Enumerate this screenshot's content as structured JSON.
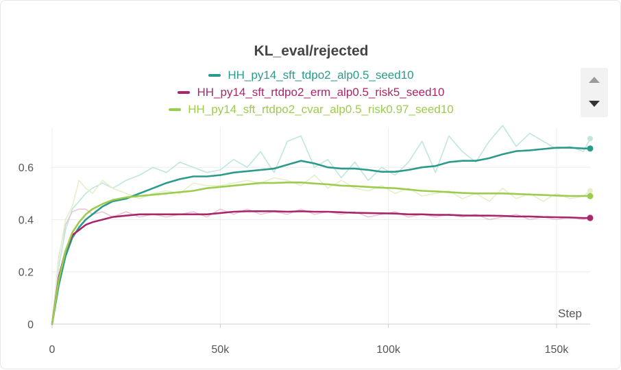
{
  "chart_data": {
    "type": "line",
    "title": "KL_eval/rejected",
    "xlabel": "Step",
    "ylabel": "",
    "xlim": [
      0,
      160000
    ],
    "ylim": [
      0,
      0.75
    ],
    "x_ticks": [
      0,
      50000,
      100000,
      150000
    ],
    "x_tick_labels": [
      "0",
      "50k",
      "100k",
      "150k"
    ],
    "y_ticks": [
      0,
      0.2,
      0.4,
      0.6
    ],
    "y_tick_labels": [
      "0",
      "0.2",
      "0.4",
      "0.6"
    ],
    "grid": "vertical and horizontal",
    "legend_position": "top-center",
    "series": [
      {
        "name": "HH_py14_sft_tdpo2_alp0.5_seed10",
        "color": "#2a9a8a",
        "raw_color": "#bfe6df",
        "x": [
          0,
          2000,
          4000,
          6000,
          8000,
          10000,
          12000,
          15000,
          18000,
          22000,
          26000,
          30000,
          34000,
          38000,
          42000,
          46000,
          50000,
          54000,
          58000,
          62000,
          66000,
          70000,
          74000,
          78000,
          82000,
          86000,
          90000,
          94000,
          98000,
          102000,
          106000,
          110000,
          114000,
          118000,
          122000,
          126000,
          130000,
          134000,
          138000,
          142000,
          146000,
          150000,
          154000,
          158000,
          160000
        ],
        "values": [
          0.0,
          0.15,
          0.26,
          0.33,
          0.37,
          0.4,
          0.42,
          0.45,
          0.47,
          0.48,
          0.5,
          0.52,
          0.54,
          0.555,
          0.565,
          0.565,
          0.57,
          0.58,
          0.585,
          0.59,
          0.595,
          0.61,
          0.625,
          0.615,
          0.6,
          0.595,
          0.595,
          0.59,
          0.583,
          0.583,
          0.59,
          0.6,
          0.605,
          0.62,
          0.625,
          0.625,
          0.635,
          0.65,
          0.662,
          0.665,
          0.67,
          0.675,
          0.675,
          0.672,
          0.672
        ],
        "raw_values": [
          0.0,
          0.22,
          0.36,
          0.44,
          0.47,
          0.5,
          0.52,
          0.54,
          0.52,
          0.55,
          0.57,
          0.6,
          0.58,
          0.62,
          0.6,
          0.58,
          0.59,
          0.63,
          0.6,
          0.66,
          0.58,
          0.7,
          0.72,
          0.6,
          0.63,
          0.56,
          0.62,
          0.55,
          0.6,
          0.57,
          0.62,
          0.7,
          0.58,
          0.72,
          0.66,
          0.62,
          0.7,
          0.76,
          0.68,
          0.73,
          0.7,
          0.67,
          0.68,
          0.66,
          0.71
        ]
      },
      {
        "name": "HH_py14_sft_rtdpo2_erm_alp0.5_risk5_seed10",
        "color": "#a8276a",
        "raw_color": "#ebc4d8",
        "x": [
          0,
          2000,
          4000,
          6000,
          8000,
          10000,
          12000,
          15000,
          18000,
          22000,
          26000,
          30000,
          34000,
          38000,
          42000,
          46000,
          50000,
          54000,
          58000,
          62000,
          66000,
          70000,
          74000,
          78000,
          82000,
          86000,
          90000,
          94000,
          98000,
          102000,
          106000,
          110000,
          114000,
          118000,
          122000,
          126000,
          130000,
          134000,
          138000,
          142000,
          146000,
          150000,
          154000,
          158000,
          160000
        ],
        "values": [
          0.0,
          0.18,
          0.28,
          0.34,
          0.36,
          0.38,
          0.39,
          0.4,
          0.41,
          0.415,
          0.42,
          0.42,
          0.42,
          0.42,
          0.42,
          0.42,
          0.425,
          0.43,
          0.432,
          0.432,
          0.432,
          0.43,
          0.432,
          0.43,
          0.43,
          0.428,
          0.426,
          0.425,
          0.424,
          0.423,
          0.42,
          0.42,
          0.418,
          0.418,
          0.416,
          0.415,
          0.415,
          0.414,
          0.412,
          0.412,
          0.41,
          0.409,
          0.408,
          0.406,
          0.406
        ],
        "raw_values": [
          0.0,
          0.26,
          0.38,
          0.43,
          0.44,
          0.44,
          0.42,
          0.43,
          0.41,
          0.43,
          0.41,
          0.42,
          0.41,
          0.42,
          0.43,
          0.41,
          0.44,
          0.42,
          0.44,
          0.42,
          0.43,
          0.42,
          0.44,
          0.42,
          0.43,
          0.42,
          0.43,
          0.41,
          0.42,
          0.43,
          0.41,
          0.42,
          0.41,
          0.42,
          0.41,
          0.42,
          0.4,
          0.41,
          0.42,
          0.4,
          0.41,
          0.4,
          0.41,
          0.4,
          0.41
        ]
      },
      {
        "name": "HH_py14_sft_rtdpo2_cvar_alp0.5_risk0.97_seed10",
        "color": "#9ccc4e",
        "raw_color": "#e3f0c9",
        "x": [
          0,
          2000,
          4000,
          6000,
          8000,
          10000,
          12000,
          15000,
          18000,
          22000,
          26000,
          30000,
          34000,
          38000,
          42000,
          46000,
          50000,
          54000,
          58000,
          62000,
          66000,
          70000,
          74000,
          78000,
          82000,
          86000,
          90000,
          94000,
          98000,
          102000,
          106000,
          110000,
          114000,
          118000,
          122000,
          126000,
          130000,
          134000,
          138000,
          142000,
          146000,
          150000,
          154000,
          158000,
          160000
        ],
        "values": [
          0.0,
          0.17,
          0.28,
          0.35,
          0.39,
          0.42,
          0.44,
          0.46,
          0.475,
          0.485,
          0.49,
          0.495,
          0.5,
          0.505,
          0.51,
          0.52,
          0.525,
          0.53,
          0.535,
          0.54,
          0.54,
          0.542,
          0.542,
          0.538,
          0.535,
          0.53,
          0.528,
          0.525,
          0.522,
          0.52,
          0.515,
          0.51,
          0.508,
          0.505,
          0.502,
          0.5,
          0.5,
          0.5,
          0.498,
          0.496,
          0.494,
          0.492,
          0.49,
          0.49,
          0.49
        ],
        "raw_values": [
          0.0,
          0.25,
          0.4,
          0.45,
          0.55,
          0.52,
          0.5,
          0.55,
          0.52,
          0.5,
          0.48,
          0.5,
          0.51,
          0.5,
          0.54,
          0.53,
          0.53,
          0.54,
          0.55,
          0.54,
          0.56,
          0.55,
          0.53,
          0.57,
          0.52,
          0.55,
          0.52,
          0.51,
          0.53,
          0.5,
          0.52,
          0.49,
          0.5,
          0.51,
          0.48,
          0.5,
          0.47,
          0.52,
          0.48,
          0.5,
          0.47,
          0.5,
          0.48,
          0.49,
          0.51
        ]
      }
    ]
  },
  "controls": {
    "scroll_up_icon": "triangle-up",
    "scroll_down_icon": "triangle-down"
  }
}
